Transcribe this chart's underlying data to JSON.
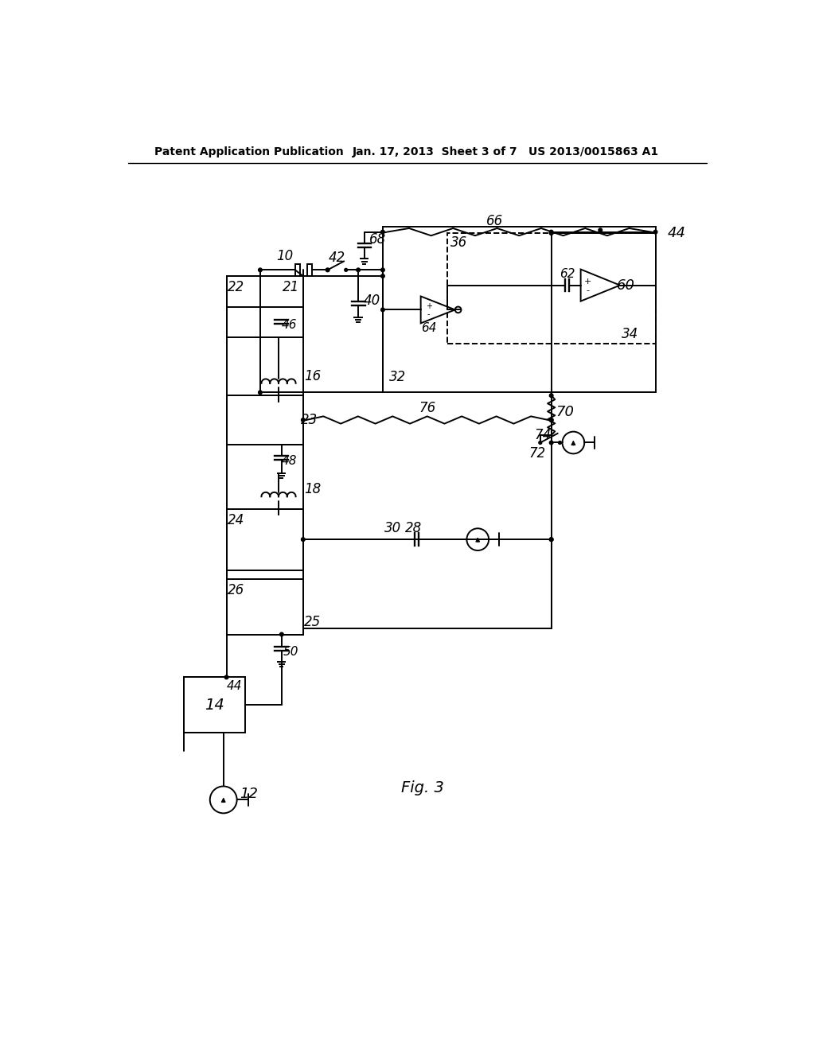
{
  "header_left": "Patent Application Publication",
  "header_mid": "Jan. 17, 2013  Sheet 3 of 7",
  "header_right": "US 2013/0015863 A1",
  "bg_color": "#ffffff",
  "lw": 1.4
}
